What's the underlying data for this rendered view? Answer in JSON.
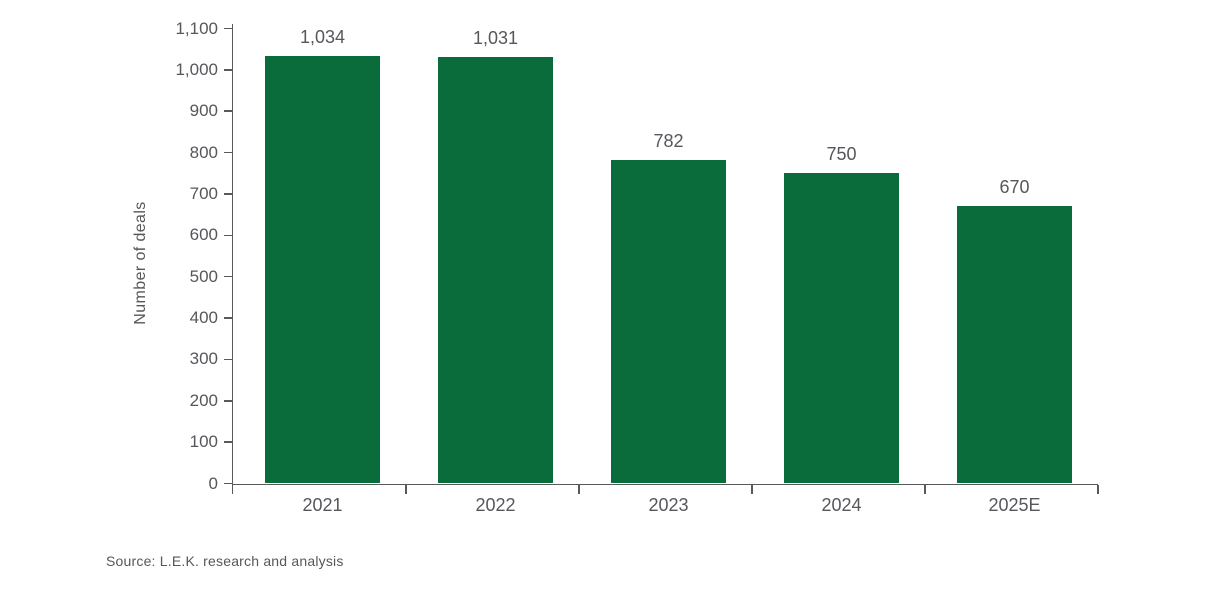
{
  "chart_data": {
    "type": "bar",
    "title": "",
    "categories": [
      "2021",
      "2022",
      "2023",
      "2024",
      "2025E"
    ],
    "values": [
      1034,
      1031,
      782,
      750,
      670
    ],
    "value_labels": [
      "1,034",
      "1,031",
      "782",
      "750",
      "670"
    ],
    "xlabel": "",
    "ylabel": "Number of deals",
    "ylim": [
      0,
      1100
    ],
    "ytick_step": 100,
    "ytick_labels": [
      "0",
      "100",
      "200",
      "300",
      "400",
      "500",
      "600",
      "700",
      "800",
      "900",
      "1,000",
      "1,100"
    ],
    "grid": false,
    "legend": null,
    "bar_color": "#0a6b3b"
  },
  "source": "Source: L.E.K. research and analysis",
  "colors": {
    "bar": "#0a6b3b",
    "text": "#55575b",
    "axis": "#58595b",
    "background": "#ffffff"
  }
}
